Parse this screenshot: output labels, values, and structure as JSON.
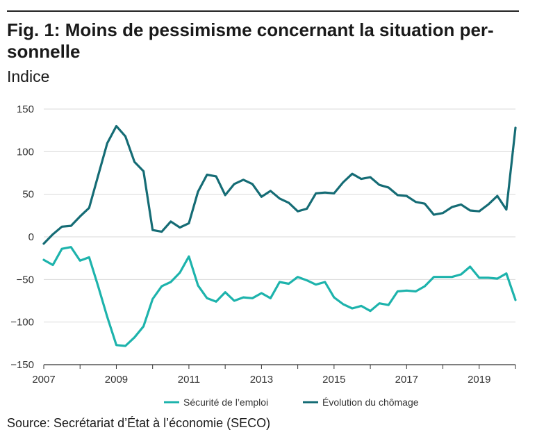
{
  "title": "Fig. 1: Moins de pessimisme concernant la situation personnelle",
  "title_lines": [
    "Fig. 1: Moins de pessimisme concernant la situation per-",
    "sonnelle"
  ],
  "subtitle": "Indice",
  "source": "Source: Secrétariat d’État à l’économie (SECO)",
  "colors": {
    "securite": "#1db3ac",
    "chomage": "#156c75",
    "grid": "#d9d9d9",
    "axis": "#333333"
  },
  "chart_data": {
    "type": "line",
    "title": "Fig. 1: Moins de pessimisme concernant la situation personnelle",
    "ylabel": "Indice",
    "xlabel": "",
    "xlim": [
      2007,
      2020
    ],
    "ylim": [
      -150,
      150
    ],
    "x_ticks": [
      "2007",
      "2009",
      "2011",
      "2013",
      "2015",
      "2017",
      "2019"
    ],
    "y_ticks": [
      "150",
      "100",
      "50",
      "0",
      "−50",
      "−100",
      "−150"
    ],
    "grid": true,
    "legend_position": "bottom",
    "x": [
      2007.0,
      2007.25,
      2007.5,
      2007.75,
      2008.0,
      2008.25,
      2008.5,
      2008.75,
      2009.0,
      2009.25,
      2009.5,
      2009.75,
      2010.0,
      2010.25,
      2010.5,
      2010.75,
      2011.0,
      2011.25,
      2011.5,
      2011.75,
      2012.0,
      2012.25,
      2012.5,
      2012.75,
      2013.0,
      2013.25,
      2013.5,
      2013.75,
      2014.0,
      2014.25,
      2014.5,
      2014.75,
      2015.0,
      2015.25,
      2015.5,
      2015.75,
      2016.0,
      2016.25,
      2016.5,
      2016.75,
      2017.0,
      2017.25,
      2017.5,
      2017.75,
      2018.0,
      2018.25,
      2018.5,
      2018.75,
      2019.0,
      2019.25,
      2019.5,
      2019.75,
      2020.0
    ],
    "series": [
      {
        "name": "Sécurité de l’emploi",
        "color": "#1db3ac",
        "values": [
          -27,
          -33,
          -14,
          -12,
          -28,
          -24,
          -58,
          -94,
          -127,
          -128,
          -118,
          -105,
          -73,
          -58,
          -53,
          -42,
          -23,
          -57,
          -72,
          -76,
          -65,
          -75,
          -71,
          -72,
          -66,
          -72,
          -53,
          -55,
          -47,
          -51,
          -56,
          -53,
          -71,
          -79,
          -84,
          -81,
          -87,
          -78,
          -80,
          -64,
          -63,
          -64,
          -58,
          -47,
          -47,
          -47,
          -44,
          -35,
          -48,
          -48,
          -49,
          -43,
          -74
        ]
      },
      {
        "name": "Évolution du chômage",
        "color": "#156c75",
        "values": [
          -8,
          3,
          12,
          13,
          24,
          34,
          72,
          110,
          130,
          118,
          88,
          77,
          8,
          6,
          18,
          11,
          16,
          53,
          73,
          71,
          49,
          62,
          67,
          62,
          47,
          54,
          45,
          40,
          30,
          33,
          51,
          52,
          51,
          64,
          74,
          68,
          70,
          61,
          58,
          49,
          48,
          41,
          39,
          26,
          28,
          35,
          38,
          31,
          30,
          38,
          48,
          32,
          128
        ]
      }
    ]
  }
}
